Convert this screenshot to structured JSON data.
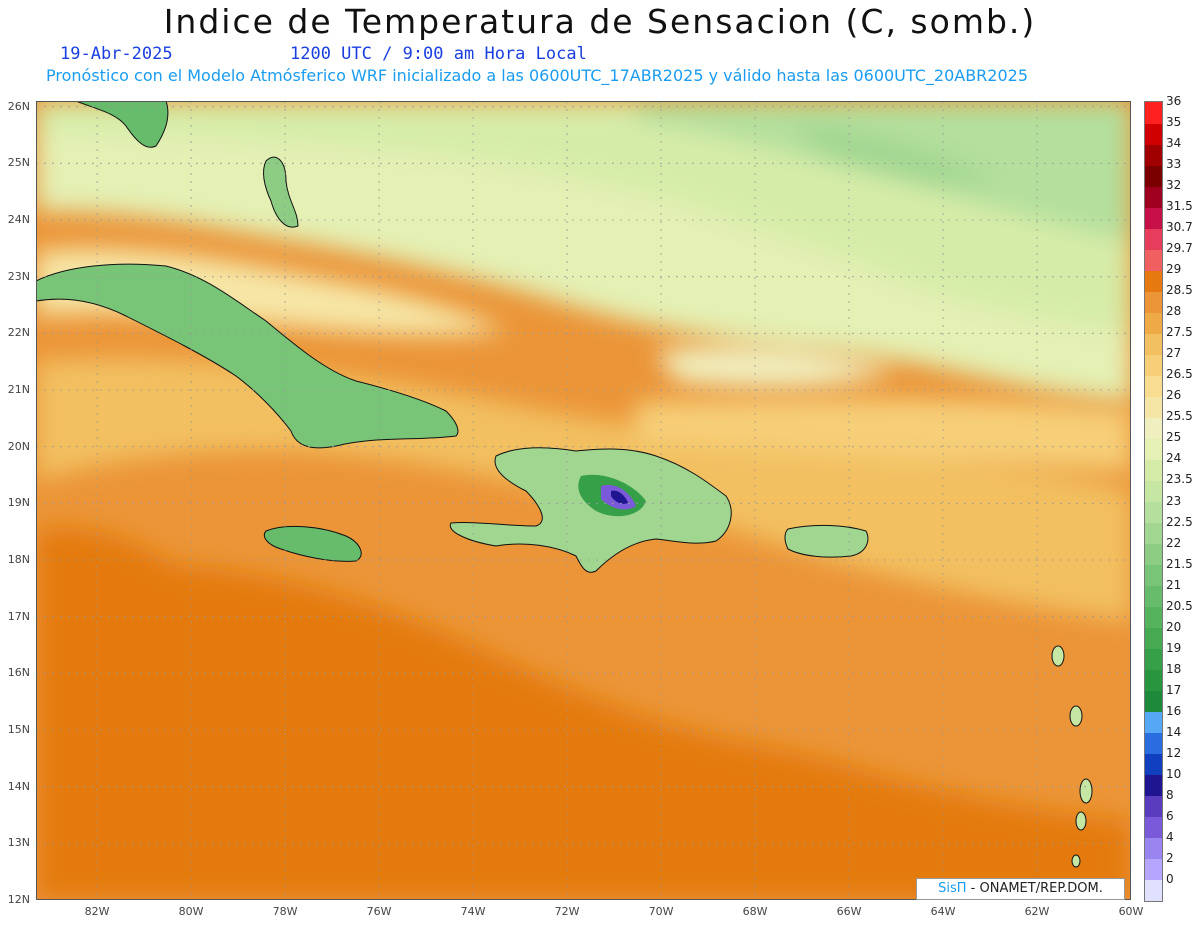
{
  "title": "Indice de Temperatura de Sensacion (C, somb.)",
  "date": "19-Abr-2025",
  "time": "1200 UTC / 9:00 am Hora Local",
  "description": "Pronóstico con el Modelo Atmósferico WRF inicializado a las 0600UTC_17ABR2025 y válido hasta las  0600UTC_20ABR2025",
  "credit": {
    "brand": "SisΠ",
    "text": " - ONAMET/REP.DOM."
  },
  "lat_labels": [
    "26N",
    "25N",
    "24N",
    "23N",
    "22N",
    "21N",
    "20N",
    "19N",
    "18N",
    "17N",
    "16N",
    "15N",
    "14N",
    "13N",
    "12N"
  ],
  "lon_labels": [
    "82W",
    "80W",
    "78W",
    "76W",
    "74W",
    "72W",
    "70W",
    "68W",
    "66W",
    "64W",
    "62W",
    "60W"
  ],
  "map_extent": {
    "lon_min": -83.3,
    "lon_max": -60,
    "lat_min": 12,
    "lat_max": 26.1
  },
  "colorbar": [
    {
      "label": "0",
      "color": "#e0e0ff"
    },
    {
      "label": "2",
      "color": "#b7a6ff"
    },
    {
      "label": "4",
      "color": "#9a84f0"
    },
    {
      "label": "6",
      "color": "#7a5ad8"
    },
    {
      "label": "8",
      "color": "#5a3cbf"
    },
    {
      "label": "10",
      "color": "#201590"
    },
    {
      "label": "12",
      "color": "#1040c0"
    },
    {
      "label": "14",
      "color": "#2a6de0"
    },
    {
      "label": "16",
      "color": "#55a8f5"
    },
    {
      "label": "17",
      "color": "#1c8a3a"
    },
    {
      "label": "18",
      "color": "#28953f"
    },
    {
      "label": "19",
      "color": "#36a048"
    },
    {
      "label": "20",
      "color": "#45aa52"
    },
    {
      "label": "20.5",
      "color": "#55b35e"
    },
    {
      "label": "21",
      "color": "#66bc6a"
    },
    {
      "label": "21.5",
      "color": "#78c577"
    },
    {
      "label": "22",
      "color": "#8ccd83"
    },
    {
      "label": "22.5",
      "color": "#a0d690"
    },
    {
      "label": "23",
      "color": "#b4df9c"
    },
    {
      "label": "23.5",
      "color": "#c6e6a4"
    },
    {
      "label": "24",
      "color": "#d5eca8"
    },
    {
      "label": "25",
      "color": "#e4f0b4"
    },
    {
      "label": "25.5",
      "color": "#f0efc0"
    },
    {
      "label": "26",
      "color": "#f6e6a6"
    },
    {
      "label": "26.5",
      "color": "#f8dc90"
    },
    {
      "label": "27",
      "color": "#f6cf78"
    },
    {
      "label": "27.5",
      "color": "#f2c060"
    },
    {
      "label": "28",
      "color": "#efaa48"
    },
    {
      "label": "28.5",
      "color": "#eb9538"
    },
    {
      "label": "29",
      "color": "#e47a10"
    },
    {
      "label": "29.7",
      "color": "#f06060"
    },
    {
      "label": "30.7",
      "color": "#e83c5c"
    },
    {
      "label": "31.5",
      "color": "#c81048"
    },
    {
      "label": "32",
      "color": "#a00020"
    },
    {
      "label": "33",
      "color": "#7a0000"
    },
    {
      "label": "34",
      "color": "#a00000"
    },
    {
      "label": "35",
      "color": "#d00000"
    },
    {
      "label": "36",
      "color": "#ff2020"
    }
  ]
}
